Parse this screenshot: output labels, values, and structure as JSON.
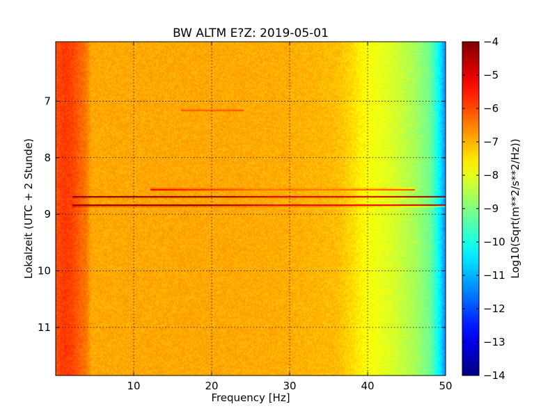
{
  "chart_data": {
    "type": "heatmap",
    "title": "BW ALTM E?Z: 2019-05-01",
    "xlabel": "Frequency [Hz]",
    "ylabel": "Lokalzeit (UTC + 2 Stunde)",
    "xlim": [
      0,
      50
    ],
    "ylim": [
      11.85,
      5.95
    ],
    "y_axis_inverted": true,
    "x_ticks": [
      10,
      20,
      30,
      40,
      50
    ],
    "x_tick_labels": [
      "10",
      "20",
      "30",
      "40",
      "50"
    ],
    "y_ticks": [
      7,
      8,
      9,
      10,
      11
    ],
    "y_tick_labels": [
      "7",
      "8",
      "9",
      "10",
      "11"
    ],
    "grid": true,
    "colormap": "jet",
    "colorbar": {
      "label": "Log10(Sqrt(m**2/s**2/Hz))",
      "range": [
        -14,
        -4
      ],
      "ticks": [
        -4,
        -5,
        -6,
        -7,
        -8,
        -9,
        -10,
        -11,
        -12,
        -13,
        -14
      ],
      "tick_labels": [
        "−4",
        "−5",
        "−6",
        "−7",
        "−8",
        "−9",
        "−10",
        "−11",
        "−12",
        "−13",
        "−14"
      ]
    },
    "spectrum_profile": {
      "frequency_hz": [
        0,
        1,
        2,
        3,
        3.8,
        4.5,
        10,
        20,
        30,
        36,
        38,
        40,
        43,
        46,
        48,
        49,
        50
      ],
      "log10_amplitude": [
        -6.0,
        -5.8,
        -5.9,
        -6.2,
        -6.4,
        -6.9,
        -6.9,
        -6.9,
        -6.95,
        -7.1,
        -7.4,
        -7.8,
        -8.1,
        -8.6,
        -9.2,
        -10.2,
        -11.5
      ]
    },
    "bands": [
      {
        "time": 8.68,
        "f_start": 2.0,
        "f_end": 50,
        "peak_value": -4.7,
        "core_start": 28,
        "core_end": 40
      },
      {
        "time": 8.83,
        "f_start": 2.0,
        "f_end": 50,
        "peak_value": -4.6,
        "core_start": 28,
        "core_end": 40
      },
      {
        "time": 8.55,
        "f_start": 12,
        "f_end": 46,
        "peak_value": -6.2,
        "core_start": 26,
        "core_end": 36
      },
      {
        "time": 7.15,
        "f_start": 16,
        "f_end": 24,
        "peak_value": -6.0,
        "core_start": 17,
        "core_end": 22
      }
    ]
  }
}
